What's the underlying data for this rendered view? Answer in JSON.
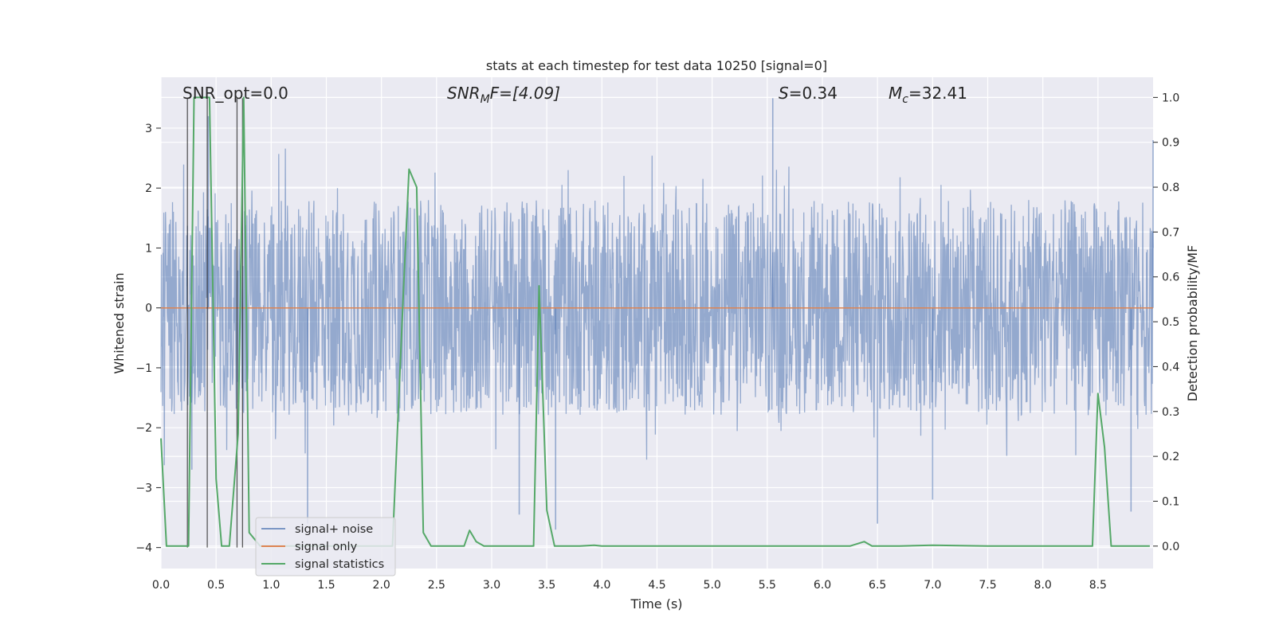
{
  "chart_data": {
    "type": "line",
    "title": "stats at each timestep for test data 10250 [signal=0]",
    "xlabel": "Time (s)",
    "ylabel": "Whitened strain",
    "y2label": "Detection probability/MF",
    "xlim": [
      0,
      9.0
    ],
    "ylim": [
      -4.35,
      3.85
    ],
    "y2lim": [
      -0.05,
      1.045
    ],
    "x_ticks": [
      "0.0",
      "0.5",
      "1.0",
      "1.5",
      "2.0",
      "2.5",
      "3.0",
      "3.5",
      "4.0",
      "4.5",
      "5.0",
      "5.5",
      "6.0",
      "6.5",
      "7.0",
      "7.5",
      "8.0",
      "8.5"
    ],
    "y_ticks": [
      "−4",
      "−3",
      "−2",
      "−1",
      "0",
      "1",
      "2",
      "3"
    ],
    "y2_ticks": [
      "0.0",
      "0.1",
      "0.2",
      "0.3",
      "0.4",
      "0.5",
      "0.6",
      "0.7",
      "0.8",
      "0.9",
      "1.0"
    ],
    "grid": true,
    "legend_position": "lower-left",
    "annotations": {
      "snr_opt": "SNR_opt=0.0",
      "snr_mf_base": "SNR",
      "snr_mf_sub": "M",
      "snr_mf_tail": "F=[4.09]",
      "s_stat": "=0.34",
      "s_symbol": "S",
      "mc_symbol": "M",
      "mc_sub": "c",
      "mc_value": "=32.41"
    },
    "series": [
      {
        "name": "signal+ noise",
        "color": "#4c72b0",
        "alpha": 0.55,
        "description_kind": "noise",
        "envelope_typical": 1.8,
        "extreme_spikes": [
          {
            "x": 0.28,
            "y": -2.7
          },
          {
            "x": 0.43,
            "y": 3.2
          },
          {
            "x": 1.33,
            "y": -3.6
          },
          {
            "x": 3.25,
            "y": -3.45
          },
          {
            "x": 3.58,
            "y": -3.7
          },
          {
            "x": 5.55,
            "y": 3.5
          },
          {
            "x": 6.5,
            "y": -3.6
          },
          {
            "x": 7.0,
            "y": -3.2
          },
          {
            "x": 8.8,
            "y": -3.4
          },
          {
            "x": 9.0,
            "y": 2.8
          }
        ]
      },
      {
        "name": "signal only",
        "color": "#dd8452",
        "values_constant": 0
      },
      {
        "name": "signal statistics",
        "color": "#55a868",
        "axis": "right",
        "x": [
          0.0,
          0.05,
          0.25,
          0.3,
          0.44,
          0.5,
          0.55,
          0.62,
          0.7,
          0.75,
          0.8,
          0.9,
          1.0,
          1.5,
          2.0,
          2.1,
          2.2,
          2.25,
          2.32,
          2.38,
          2.45,
          2.6,
          2.75,
          2.8,
          2.86,
          2.93,
          3.0,
          3.2,
          3.38,
          3.43,
          3.5,
          3.57,
          3.8,
          3.93,
          4.0,
          5.0,
          6.0,
          6.25,
          6.38,
          6.45,
          6.7,
          7.0,
          7.5,
          8.0,
          8.45,
          8.5,
          8.56,
          8.62,
          8.9,
          8.97
        ],
        "values": [
          0.24,
          0.0,
          0.0,
          1.0,
          1.0,
          0.15,
          0.0,
          0.0,
          0.25,
          1.0,
          0.03,
          0.0,
          0.0,
          0.0,
          0.0,
          0.0,
          0.57,
          0.84,
          0.8,
          0.03,
          0.0,
          0.0,
          0.0,
          0.035,
          0.01,
          0.0,
          0.0,
          0.0,
          0.0,
          0.58,
          0.08,
          0.0,
          0.0,
          0.002,
          0.0,
          0.0,
          0.0,
          0.0,
          0.01,
          0.0,
          0.0,
          0.002,
          0.0,
          0.0,
          0.0,
          0.34,
          0.22,
          0.0,
          0.0,
          0.0
        ]
      }
    ],
    "vertical_markers": {
      "color": "#262626",
      "x": [
        0.24,
        0.42,
        0.69,
        0.74
      ],
      "ytop": 3.5,
      "ybottom": -4.0
    }
  }
}
